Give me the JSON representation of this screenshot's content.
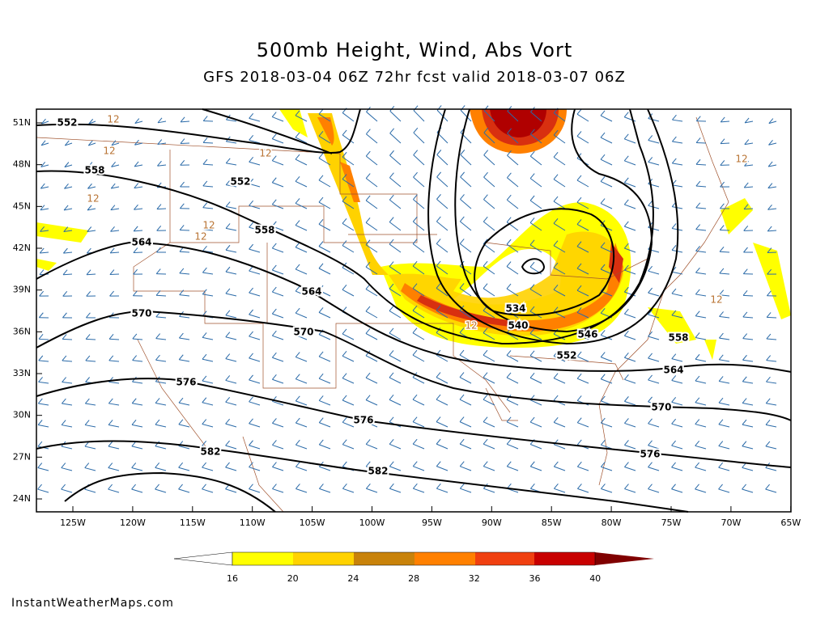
{
  "header": {
    "title": "500mb Height, Wind, Abs Vort",
    "subtitle": "GFS 2018-03-04 06Z 72hr fcst valid 2018-03-07 06Z"
  },
  "map": {
    "lat_labels": [
      "51N",
      "48N",
      "45N",
      "42N",
      "39N",
      "36N",
      "33N",
      "30N",
      "27N",
      "24N"
    ],
    "lon_labels": [
      "125W",
      "120W",
      "115W",
      "110W",
      "105W",
      "100W",
      "95W",
      "90W",
      "85W",
      "80W",
      "75W",
      "70W",
      "65W"
    ],
    "contour_labels": [
      "552",
      "552",
      "558",
      "558",
      "564",
      "564",
      "570",
      "570",
      "534",
      "540",
      "546",
      "552",
      "558",
      "564",
      "570",
      "576",
      "576",
      "576",
      "582",
      "582"
    ],
    "vort_labels": [
      "12",
      "12",
      "12",
      "12",
      "12",
      "12",
      "12",
      "12",
      "12"
    ]
  },
  "colorbar": {
    "labels": [
      "16",
      "20",
      "24",
      "28",
      "32",
      "36",
      "40"
    ]
  },
  "credit": "InstantWeatherMaps.com"
}
